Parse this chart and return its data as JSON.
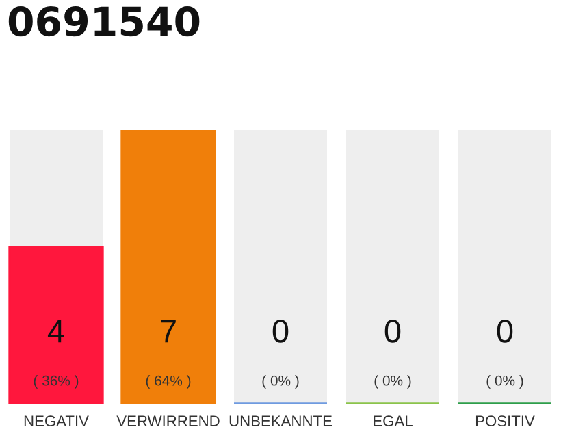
{
  "chart_data": {
    "type": "bar",
    "title": "0691540",
    "categories": [
      "NEGATIV",
      "VERWIRREND",
      "UNBEKANNTE",
      "EGAL",
      "POSITIV"
    ],
    "values": [
      4,
      7,
      0,
      0,
      0
    ],
    "colors": [
      "#ff173d",
      "#f07f0a",
      "#6f9be0",
      "#8bc34a",
      "#2e9e4a"
    ],
    "data_labels": true,
    "annotations": [
      "( 36% )",
      "( 64% )",
      "( 0% )",
      "( 0% )",
      "( 0% )"
    ],
    "grid": false,
    "legend": false
  }
}
